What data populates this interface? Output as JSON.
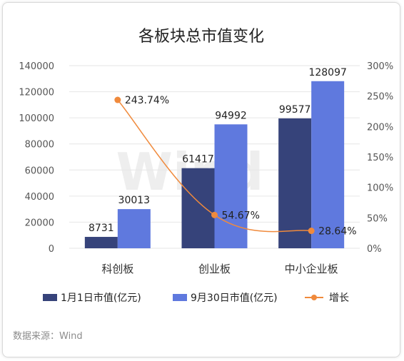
{
  "chart_data": {
    "type": "bar",
    "title": "各板块总市值变化",
    "categories": [
      "科创板",
      "创业板",
      "中小企业板"
    ],
    "series": [
      {
        "name": "1月1日市值(亿元)",
        "type": "bar",
        "axis": "left",
        "color": "#36437a",
        "values": [
          8731,
          61417,
          99577
        ],
        "labels": [
          "8731",
          "61417",
          "99577"
        ]
      },
      {
        "name": "9月30日市值(亿元)",
        "type": "bar",
        "axis": "left",
        "color": "#5f79de",
        "values": [
          30013,
          94992,
          128097
        ],
        "labels": [
          "30013",
          "94992",
          "128097"
        ]
      },
      {
        "name": "增长",
        "type": "line",
        "axis": "right",
        "color": "#f08a3c",
        "values": [
          243.74,
          54.67,
          28.64
        ],
        "labels": [
          "243.74%",
          "54.67%",
          "28.64%"
        ]
      }
    ],
    "yleft": {
      "min": 0,
      "max": 140000,
      "ticks": [
        "0",
        "20000",
        "40000",
        "60000",
        "80000",
        "100000",
        "120000",
        "140000"
      ]
    },
    "yright": {
      "min": 0,
      "max": 300,
      "ticks": [
        "0%",
        "50%",
        "100%",
        "150%",
        "200%",
        "250%",
        "300%"
      ]
    },
    "grid": true,
    "legend_position": "bottom"
  },
  "watermark": "Wind",
  "source": "数据来源：Wind"
}
